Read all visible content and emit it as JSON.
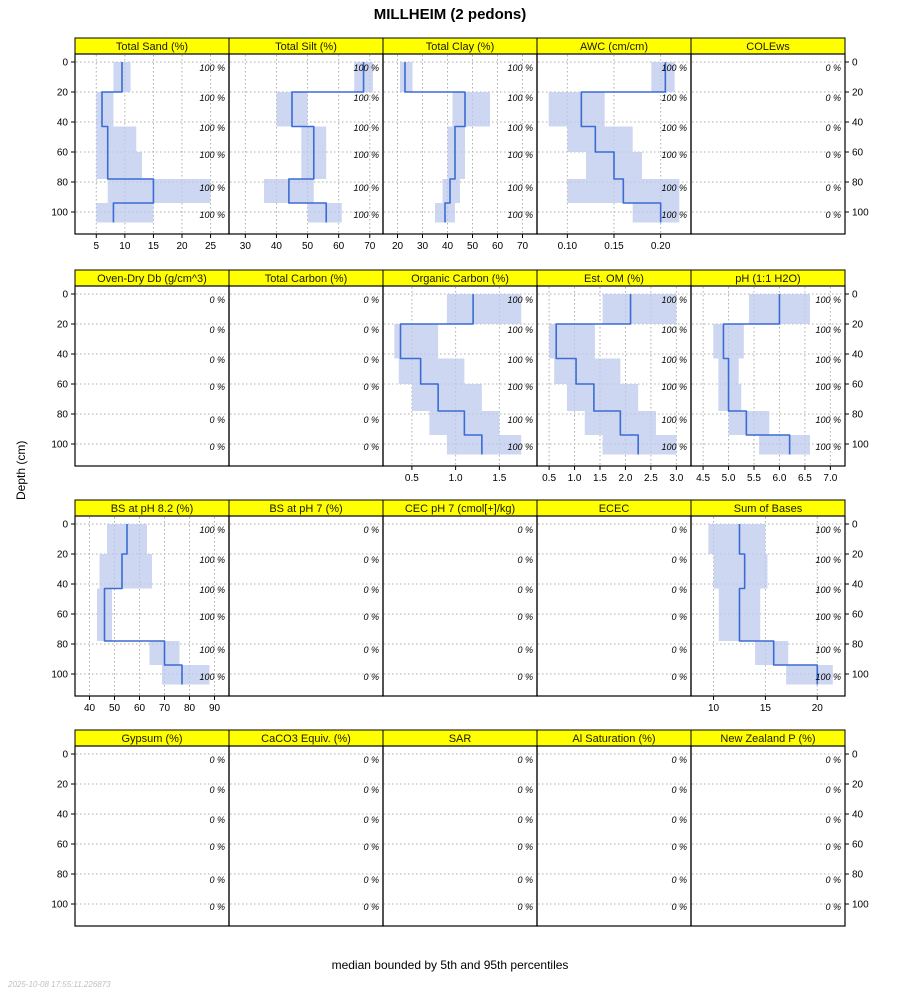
{
  "title": "MILLHEIM (2 pedons)",
  "y_axis_label": "Depth (cm)",
  "caption": "median bounded by 5th and 95th percentiles",
  "watermark": "2025-10-08 17:55:11.226873",
  "depth_ticks": [
    0,
    20,
    40,
    60,
    80,
    100
  ],
  "colors": {
    "strip_bg": "#FFFF00",
    "strip_border": "#000000",
    "ribbon": "#BDC9EE",
    "line": "#3B6CD4",
    "grid": "#ADADAD",
    "axis": "#000000"
  },
  "chart_data": {
    "type": "line",
    "title": "MILLHEIM (2 pedons)",
    "xlabel": "",
    "ylabel": "Depth (cm)",
    "ylim": [
      110,
      0
    ],
    "grid": true,
    "legend_position": "none",
    "percent_depths": [
      4,
      24,
      44,
      62,
      84,
      102
    ],
    "rows": [
      [
        {
          "title": "Total Sand (%)",
          "xlim": [
            2.5,
            27
          ],
          "xticks": [
            5,
            10,
            15,
            20,
            25
          ],
          "xtick_labels": [
            "5",
            "10",
            "15",
            "20",
            "25"
          ],
          "percent_text": "100 %",
          "segments": [
            {
              "top": 0,
              "bottom": 20,
              "p5": 8,
              "p50": 9.5,
              "p95": 11
            },
            {
              "top": 20,
              "bottom": 43,
              "p5": 5,
              "p50": 6,
              "p95": 8
            },
            {
              "top": 43,
              "bottom": 60,
              "p5": 5,
              "p50": 7,
              "p95": 12
            },
            {
              "top": 60,
              "bottom": 78,
              "p5": 5,
              "p50": 7,
              "p95": 13
            },
            {
              "top": 78,
              "bottom": 94,
              "p5": 7,
              "p50": 15,
              "p95": 25
            },
            {
              "top": 94,
              "bottom": 107,
              "p5": 5,
              "p50": 8,
              "p95": 15
            }
          ]
        },
        {
          "title": "Total Silt (%)",
          "xlim": [
            27,
            72
          ],
          "xticks": [
            30,
            40,
            50,
            60,
            70
          ],
          "xtick_labels": [
            "30",
            "40",
            "50",
            "60",
            "70"
          ],
          "percent_text": "100 %",
          "segments": [
            {
              "top": 0,
              "bottom": 20,
              "p5": 65,
              "p50": 68,
              "p95": 71
            },
            {
              "top": 20,
              "bottom": 43,
              "p5": 40,
              "p50": 45,
              "p95": 50
            },
            {
              "top": 43,
              "bottom": 60,
              "p5": 48,
              "p50": 52,
              "p95": 56
            },
            {
              "top": 60,
              "bottom": 78,
              "p5": 48,
              "p50": 52,
              "p95": 56
            },
            {
              "top": 78,
              "bottom": 94,
              "p5": 36,
              "p50": 44,
              "p95": 52
            },
            {
              "top": 94,
              "bottom": 107,
              "p5": 50,
              "p50": 56,
              "p95": 61
            }
          ]
        },
        {
          "title": "Total Clay (%)",
          "xlim": [
            17,
            73
          ],
          "xticks": [
            20,
            30,
            40,
            50,
            60,
            70
          ],
          "xtick_labels": [
            "20",
            "30",
            "40",
            "50",
            "60",
            "70"
          ],
          "percent_text": "100 %",
          "segments": [
            {
              "top": 0,
              "bottom": 20,
              "p5": 21,
              "p50": 23,
              "p95": 26
            },
            {
              "top": 20,
              "bottom": 43,
              "p5": 42,
              "p50": 47,
              "p95": 57
            },
            {
              "top": 43,
              "bottom": 60,
              "p5": 40,
              "p50": 43,
              "p95": 47
            },
            {
              "top": 60,
              "bottom": 78,
              "p5": 40,
              "p50": 43,
              "p95": 47
            },
            {
              "top": 78,
              "bottom": 94,
              "p5": 38,
              "p50": 41,
              "p95": 45
            },
            {
              "top": 94,
              "bottom": 107,
              "p5": 35,
              "p50": 39,
              "p95": 43
            }
          ]
        },
        {
          "title": "AWC (cm/cm)",
          "xlim": [
            0.075,
            0.225
          ],
          "xticks": [
            0.1,
            0.15,
            0.2
          ],
          "xtick_labels": [
            "0.10",
            "0.15",
            "0.20"
          ],
          "percent_text": "100 %",
          "segments": [
            {
              "top": 0,
              "bottom": 20,
              "p5": 0.19,
              "p50": 0.205,
              "p95": 0.215
            },
            {
              "top": 20,
              "bottom": 43,
              "p5": 0.08,
              "p50": 0.115,
              "p95": 0.14
            },
            {
              "top": 43,
              "bottom": 60,
              "p5": 0.1,
              "p50": 0.13,
              "p95": 0.17
            },
            {
              "top": 60,
              "bottom": 78,
              "p5": 0.12,
              "p50": 0.15,
              "p95": 0.18
            },
            {
              "top": 78,
              "bottom": 94,
              "p5": 0.1,
              "p50": 0.16,
              "p95": 0.22
            },
            {
              "top": 94,
              "bottom": 107,
              "p5": 0.17,
              "p50": 0.2,
              "p95": 0.22
            }
          ]
        },
        {
          "title": "COLEws",
          "xlim": null,
          "xticks": [],
          "xtick_labels": [],
          "percent_text": "0 %",
          "segments": []
        }
      ],
      [
        {
          "title": "Oven-Dry Db (g/cm^3)",
          "xlim": null,
          "xticks": [],
          "xtick_labels": [],
          "percent_text": "0 %",
          "segments": []
        },
        {
          "title": "Total Carbon (%)",
          "xlim": null,
          "xticks": [],
          "xtick_labels": [],
          "percent_text": "0 %",
          "segments": []
        },
        {
          "title": "Organic Carbon (%)",
          "xlim": [
            0.25,
            1.85
          ],
          "xticks": [
            0.5,
            1.0,
            1.5
          ],
          "xtick_labels": [
            "0.5",
            "1.0",
            "1.5"
          ],
          "percent_text": "100 %",
          "segments": [
            {
              "top": 0,
              "bottom": 20,
              "p5": 0.9,
              "p50": 1.2,
              "p95": 1.75
            },
            {
              "top": 20,
              "bottom": 43,
              "p5": 0.3,
              "p50": 0.37,
              "p95": 0.8
            },
            {
              "top": 43,
              "bottom": 60,
              "p5": 0.35,
              "p50": 0.6,
              "p95": 1.1
            },
            {
              "top": 60,
              "bottom": 78,
              "p5": 0.5,
              "p50": 0.8,
              "p95": 1.3
            },
            {
              "top": 78,
              "bottom": 94,
              "p5": 0.7,
              "p50": 1.1,
              "p95": 1.5
            },
            {
              "top": 94,
              "bottom": 107,
              "p5": 0.9,
              "p50": 1.3,
              "p95": 1.75
            }
          ]
        },
        {
          "title": "Est. OM (%)",
          "xlim": [
            0.4,
            3.15
          ],
          "xticks": [
            0.5,
            1.0,
            1.5,
            2.0,
            2.5,
            3.0
          ],
          "xtick_labels": [
            "0.5",
            "1.0",
            "1.5",
            "2.0",
            "2.5",
            "3.0"
          ],
          "percent_text": "100 %",
          "segments": [
            {
              "top": 0,
              "bottom": 20,
              "p5": 1.55,
              "p50": 2.1,
              "p95": 3.0
            },
            {
              "top": 20,
              "bottom": 43,
              "p5": 0.5,
              "p50": 0.64,
              "p95": 1.4
            },
            {
              "top": 43,
              "bottom": 60,
              "p5": 0.6,
              "p50": 1.03,
              "p95": 1.9
            },
            {
              "top": 60,
              "bottom": 78,
              "p5": 0.85,
              "p50": 1.38,
              "p95": 2.25
            },
            {
              "top": 78,
              "bottom": 94,
              "p5": 1.2,
              "p50": 1.9,
              "p95": 2.6
            },
            {
              "top": 94,
              "bottom": 107,
              "p5": 1.55,
              "p50": 2.25,
              "p95": 3.0
            }
          ]
        },
        {
          "title": "pH (1:1 H2O)",
          "xlim": [
            4.4,
            7.15
          ],
          "xticks": [
            4.5,
            5.0,
            5.5,
            6.0,
            6.5,
            7.0
          ],
          "xtick_labels": [
            "4.5",
            "5.0",
            "5.5",
            "6.0",
            "6.5",
            "7.0"
          ],
          "percent_text": "100 %",
          "segments": [
            {
              "top": 0,
              "bottom": 20,
              "p5": 5.4,
              "p50": 6.0,
              "p95": 6.6
            },
            {
              "top": 20,
              "bottom": 43,
              "p5": 4.7,
              "p50": 4.9,
              "p95": 5.3
            },
            {
              "top": 43,
              "bottom": 60,
              "p5": 4.8,
              "p50": 5.0,
              "p95": 5.2
            },
            {
              "top": 60,
              "bottom": 78,
              "p5": 4.8,
              "p50": 5.0,
              "p95": 5.25
            },
            {
              "top": 78,
              "bottom": 94,
              "p5": 5.0,
              "p50": 5.35,
              "p95": 5.8
            },
            {
              "top": 94,
              "bottom": 107,
              "p5": 5.6,
              "p50": 6.2,
              "p95": 6.6
            }
          ]
        }
      ],
      [
        {
          "title": "BS at pH 8.2 (%)",
          "xlim": [
            37,
            93
          ],
          "xticks": [
            40,
            50,
            60,
            70,
            80,
            90
          ],
          "xtick_labels": [
            "40",
            "50",
            "60",
            "70",
            "80",
            "90"
          ],
          "percent_text": "100 %",
          "segments": [
            {
              "top": 0,
              "bottom": 20,
              "p5": 47,
              "p50": 55,
              "p95": 63
            },
            {
              "top": 20,
              "bottom": 43,
              "p5": 44,
              "p50": 53,
              "p95": 65
            },
            {
              "top": 43,
              "bottom": 60,
              "p5": 43,
              "p50": 46,
              "p95": 49
            },
            {
              "top": 60,
              "bottom": 78,
              "p5": 43,
              "p50": 46,
              "p95": 49
            },
            {
              "top": 78,
              "bottom": 94,
              "p5": 64,
              "p50": 70,
              "p95": 76
            },
            {
              "top": 94,
              "bottom": 107,
              "p5": 69,
              "p50": 77,
              "p95": 88
            }
          ]
        },
        {
          "title": "BS at pH 7 (%)",
          "xlim": null,
          "xticks": [],
          "xtick_labels": [],
          "percent_text": "0 %",
          "segments": []
        },
        {
          "title": "CEC pH 7 (cmol[+]/kg)",
          "xlim": null,
          "xticks": [],
          "xtick_labels": [],
          "percent_text": "0 %",
          "segments": []
        },
        {
          "title": "ECEC",
          "xlim": null,
          "xticks": [],
          "xtick_labels": [],
          "percent_text": "0 %",
          "segments": []
        },
        {
          "title": "Sum of Bases",
          "xlim": [
            8.5,
            22
          ],
          "xticks": [
            10,
            15,
            20
          ],
          "xtick_labels": [
            "10",
            "15",
            "20"
          ],
          "percent_text": "100 %",
          "segments": [
            {
              "top": 0,
              "bottom": 20,
              "p5": 9.5,
              "p50": 12.5,
              "p95": 15
            },
            {
              "top": 20,
              "bottom": 43,
              "p5": 10,
              "p50": 13,
              "p95": 15.2
            },
            {
              "top": 43,
              "bottom": 60,
              "p5": 10.5,
              "p50": 12.5,
              "p95": 14.5
            },
            {
              "top": 60,
              "bottom": 78,
              "p5": 10.5,
              "p50": 12.5,
              "p95": 14.5
            },
            {
              "top": 78,
              "bottom": 94,
              "p5": 14,
              "p50": 15.8,
              "p95": 17.2
            },
            {
              "top": 94,
              "bottom": 107,
              "p5": 17,
              "p50": 20,
              "p95": 21.5
            }
          ]
        }
      ],
      [
        {
          "title": "Gypsum (%)",
          "xlim": null,
          "xticks": [],
          "xtick_labels": [],
          "percent_text": "0 %",
          "segments": []
        },
        {
          "title": "CaCO3 Equiv. (%)",
          "xlim": null,
          "xticks": [],
          "xtick_labels": [],
          "percent_text": "0 %",
          "segments": []
        },
        {
          "title": "SAR",
          "xlim": null,
          "xticks": [],
          "xtick_labels": [],
          "percent_text": "0 %",
          "segments": []
        },
        {
          "title": "Al Saturation (%)",
          "xlim": null,
          "xticks": [],
          "xtick_labels": [],
          "percent_text": "0 %",
          "segments": []
        },
        {
          "title": "New Zealand P (%)",
          "xlim": null,
          "xticks": [],
          "xtick_labels": [],
          "percent_text": "0 %",
          "segments": []
        }
      ]
    ]
  }
}
